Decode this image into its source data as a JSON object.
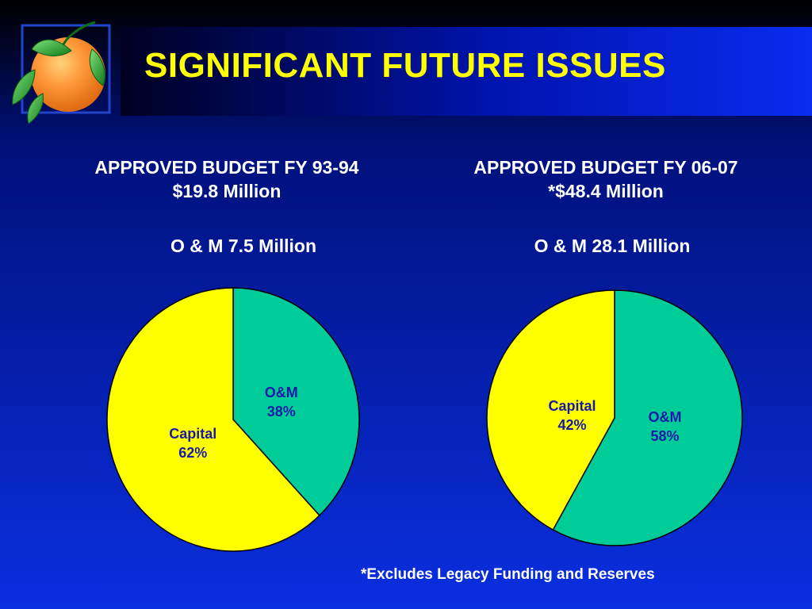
{
  "title": "SIGNIFICANT FUTURE ISSUES",
  "colors": {
    "title": "#ffff00",
    "capital": "#ffff00",
    "om": "#00cc99",
    "slice_text": "#1a1aa8",
    "heading_text": "#ffffff"
  },
  "logo": {
    "icon": "orange-fruit-with-leaves-icon"
  },
  "panels": [
    {
      "heading": "APPROVED BUDGET FY 93-94",
      "total": "$19.8 Million",
      "om_line": "O & M 7.5 Million"
    },
    {
      "heading": "APPROVED BUDGET FY 06-07",
      "total": "*$48.4 Million",
      "om_line": "O & M 28.1 Million"
    }
  ],
  "chart_data": [
    {
      "type": "pie",
      "slices": [
        {
          "label": "O&M",
          "value": 38,
          "value_label": "38%",
          "color": "#00cc99"
        },
        {
          "label": "Capital",
          "value": 62,
          "value_label": "62%",
          "color": "#ffff00"
        }
      ]
    },
    {
      "type": "pie",
      "slices": [
        {
          "label": "O&M",
          "value": 58,
          "value_label": "58%",
          "color": "#00cc99"
        },
        {
          "label": "Capital",
          "value": 42,
          "value_label": "42%",
          "color": "#ffff00"
        }
      ]
    }
  ],
  "footnote": "*Excludes Legacy Funding and Reserves"
}
